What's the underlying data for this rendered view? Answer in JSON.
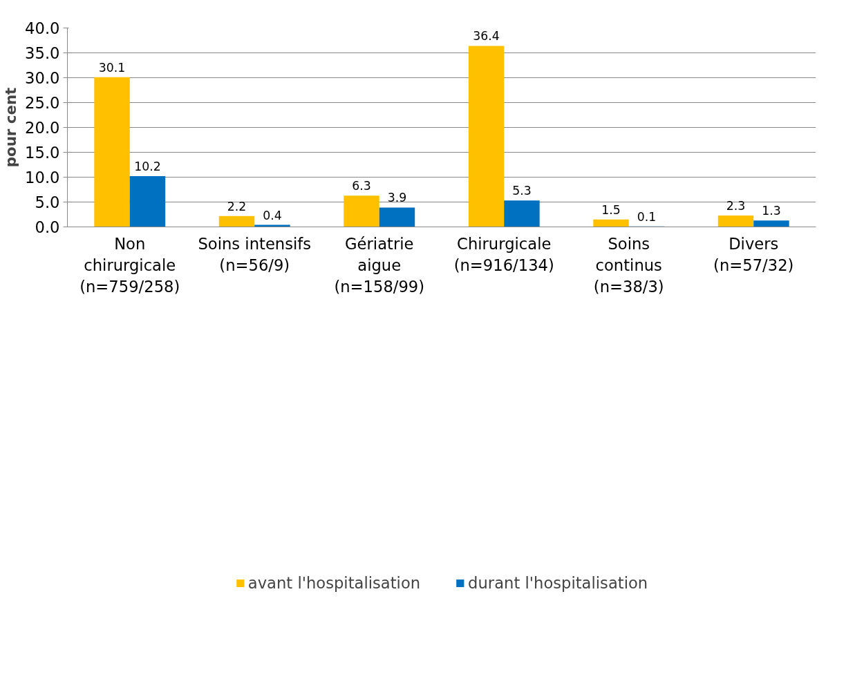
{
  "chart_data": {
    "type": "bar",
    "categories": [
      "Non\nchirurgicale\n(n=759/258)",
      "Soins intensifs\n(n=56/9)",
      "Gériatrie\naigue\n(n=158/99)",
      "Chirurgicale\n(n=916/134)",
      "Soins\ncontinus\n(n=38/3)",
      "Divers\n(n=57/32)"
    ],
    "series": [
      {
        "name": "avant l'hospitalisation",
        "color": "#ffc000",
        "values": [
          30.1,
          2.2,
          6.3,
          36.4,
          1.5,
          2.3
        ]
      },
      {
        "name": "durant l'hospitalisation",
        "color": "#0070c0",
        "values": [
          10.2,
          0.4,
          3.9,
          5.3,
          0.1,
          1.3
        ]
      }
    ],
    "ylabel": "pour cent",
    "ylim": [
      0,
      40
    ],
    "yticks": [
      {
        "value": 0,
        "label": "0.0"
      },
      {
        "value": 5,
        "label": "5.0"
      },
      {
        "value": 10,
        "label": "10.0"
      },
      {
        "value": 15,
        "label": "15.0"
      },
      {
        "value": 20,
        "label": "20.0"
      },
      {
        "value": 25,
        "label": "25.0"
      },
      {
        "value": 30,
        "label": "30.0"
      },
      {
        "value": 35,
        "label": "35.0"
      },
      {
        "value": 40,
        "label": "40.0"
      }
    ],
    "grid": "y",
    "legend": "bottom",
    "data_labels": true
  }
}
